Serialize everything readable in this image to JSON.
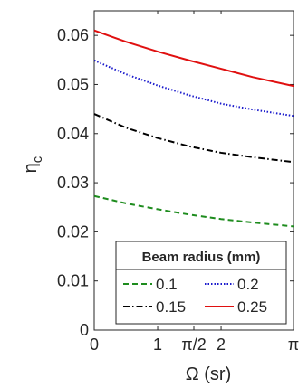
{
  "chart_data": {
    "type": "line",
    "xlabel": "Ω (sr)",
    "ylabel": "η_c",
    "xlim": [
      0,
      3.14159
    ],
    "ylim": [
      0,
      0.065
    ],
    "x_ticks": [
      {
        "value": 0,
        "label": "0"
      },
      {
        "value": 1,
        "label": "1"
      },
      {
        "value": 1.5708,
        "label": "π/2"
      },
      {
        "value": 2,
        "label": "2"
      },
      {
        "value": 3.14159,
        "label": "π"
      }
    ],
    "y_ticks": [
      {
        "value": 0,
        "label": "0"
      },
      {
        "value": 0.01,
        "label": "0.01"
      },
      {
        "value": 0.02,
        "label": "0.02"
      },
      {
        "value": 0.03,
        "label": "0.03"
      },
      {
        "value": 0.04,
        "label": "0.04"
      },
      {
        "value": 0.05,
        "label": "0.05"
      },
      {
        "value": 0.06,
        "label": "0.06"
      }
    ],
    "grid": false,
    "legend": {
      "title": "Beam radius (mm)",
      "placement": "bottom-center",
      "columns": 2
    },
    "x": [
      0,
      0.5,
      1.0,
      1.5,
      2.0,
      2.5,
      3.14159
    ],
    "series": [
      {
        "name": "0.1",
        "color": "#1e8c1e",
        "dash": "dashed",
        "values": [
          0.0273,
          0.0258,
          0.0246,
          0.0235,
          0.0226,
          0.0219,
          0.0211
        ]
      },
      {
        "name": "0.2",
        "color": "#1a1acc",
        "dash": "dotted",
        "values": [
          0.0549,
          0.0521,
          0.0498,
          0.0478,
          0.0461,
          0.0449,
          0.0436
        ]
      },
      {
        "name": "0.15",
        "color": "#000000",
        "dash": "dashdot",
        "values": [
          0.044,
          0.0412,
          0.0391,
          0.0374,
          0.0361,
          0.0352,
          0.0342
        ]
      },
      {
        "name": "0.25",
        "color": "#e01010",
        "dash": "solid",
        "values": [
          0.061,
          0.0587,
          0.0567,
          0.0549,
          0.0532,
          0.0515,
          0.0497
        ]
      }
    ]
  }
}
